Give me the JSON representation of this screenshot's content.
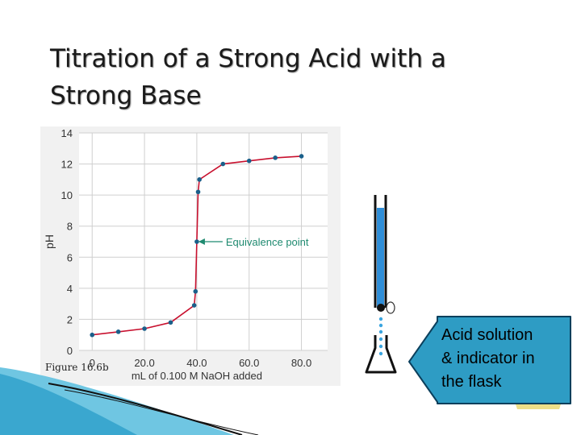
{
  "slide": {
    "title": "Titration of a Strong Acid with a\nStrong Base",
    "figure_caption": "Figure 16.6b",
    "callout_text": "Acid solution\n& indicator in\nthe flask"
  },
  "colors": {
    "curve": "#c8102e",
    "point": "#1a5f8a",
    "annotation": "#1f8a70",
    "callout_fill": "#2e9cc4",
    "burette_liquid": "#2f8ed8"
  },
  "chart_data": {
    "type": "line",
    "title": "",
    "xlabel": "mL of 0.100 M NaOH added",
    "ylabel": "pH",
    "xlim": [
      -5,
      90
    ],
    "ylim": [
      0,
      14
    ],
    "x_ticks": [
      0,
      20,
      40,
      60,
      80
    ],
    "x_tick_labels": [
      "0",
      "20.0",
      "40.0",
      "60.0",
      "80.0"
    ],
    "y_ticks": [
      0,
      2,
      4,
      6,
      8,
      10,
      12,
      14
    ],
    "y_tick_labels": [
      "0",
      "2",
      "4",
      "6",
      "8",
      "10",
      "12",
      "14"
    ],
    "grid": true,
    "series": [
      {
        "points": [
          [
            0,
            1.0
          ],
          [
            10,
            1.2
          ],
          [
            20,
            1.4
          ],
          [
            30,
            1.8
          ],
          [
            39,
            2.9
          ],
          [
            39.5,
            3.8
          ],
          [
            40,
            7.0
          ],
          [
            40.5,
            10.2
          ],
          [
            41,
            11.0
          ],
          [
            50,
            12.0
          ],
          [
            60,
            12.2
          ],
          [
            70,
            12.4
          ],
          [
            80,
            12.5
          ]
        ]
      }
    ],
    "annotations": [
      {
        "text": "Equivalence point",
        "x": 40,
        "y": 7.0
      }
    ]
  }
}
